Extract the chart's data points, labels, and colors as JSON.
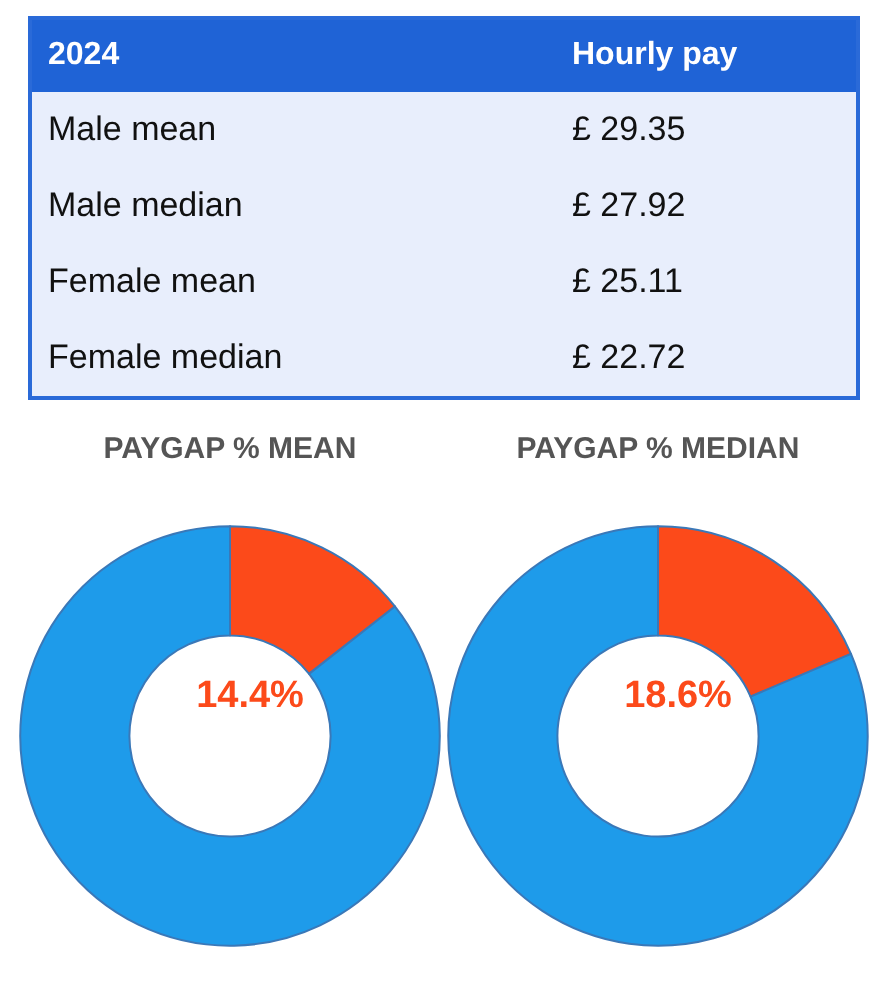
{
  "chart_data": [
    {
      "type": "other",
      "annotations": [
        "2024",
        "Hourly pay",
        "Male mean",
        "£ 29.35",
        "Male median",
        "£ 27.92",
        "Female mean",
        "£ 25.11",
        "Female median",
        "£ 22.72"
      ]
    },
    {
      "type": "donut",
      "title": "PAYGAP % MEAN",
      "categories": [
        null,
        null
      ],
      "values": [
        14.4,
        85.6
      ],
      "colors": [
        "#fc4a1a",
        "#1e9bea"
      ],
      "value_labels": [
        "14.4%",
        null
      ]
    },
    {
      "type": "donut",
      "title": "PAYGAP % MEDIAN",
      "categories": [
        null,
        null
      ],
      "values": [
        18.6,
        81.4
      ],
      "colors": [
        "#fc4a1a",
        "#1e9bea"
      ],
      "value_labels": [
        "18.6%",
        null
      ]
    }
  ]
}
